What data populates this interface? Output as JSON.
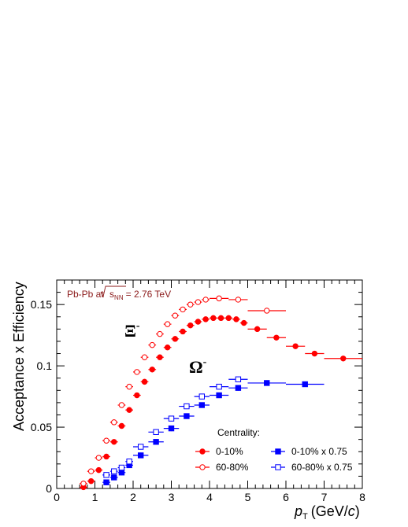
{
  "chart_data": {
    "type": "scatter",
    "system_label": {
      "prefix": "Pb-Pb at",
      "sqrt_s": "s",
      "subscript": "NN",
      "value": "= 2.76 TeV"
    },
    "xlabel": {
      "main": "p",
      "sub": "T",
      "unit_open": "(GeV/",
      "unit_c": "c",
      "unit_close": ")"
    },
    "ylabel": "Acceptance x Efficiency",
    "xlim": [
      0,
      8
    ],
    "ylim": [
      0,
      0.17
    ],
    "xticks": [
      "0",
      "1",
      "2",
      "3",
      "4",
      "5",
      "6",
      "7",
      "8"
    ],
    "yticks": [
      {
        "value": 0,
        "label": "0"
      },
      {
        "value": 0.05,
        "label": "0.05"
      },
      {
        "value": 0.1,
        "label": "0.1"
      },
      {
        "value": 0.15,
        "label": "0.15"
      }
    ],
    "annotations": {
      "xi": {
        "text": "Ξ",
        "sup": "-"
      },
      "omega": {
        "text": "Ω",
        "sup": "-"
      }
    },
    "legend_title": "Centrality:",
    "series": [
      {
        "name": "0-10%",
        "color": "#ff0000",
        "marker": "filled-circle",
        "x": [
          0.7,
          0.9,
          1.1,
          1.3,
          1.5,
          1.7,
          1.9,
          2.1,
          2.3,
          2.5,
          2.7,
          2.9,
          3.1,
          3.3,
          3.5,
          3.7,
          3.9,
          4.1,
          4.3,
          4.5,
          4.7,
          4.9,
          5.25,
          5.75,
          6.25,
          6.75,
          7.5
        ],
        "xerr": [
          0.1,
          0.1,
          0.1,
          0.1,
          0.1,
          0.1,
          0.1,
          0.1,
          0.1,
          0.1,
          0.1,
          0.1,
          0.1,
          0.1,
          0.1,
          0.1,
          0.1,
          0.1,
          0.1,
          0.1,
          0.1,
          0.1,
          0.25,
          0.25,
          0.25,
          0.25,
          0.5
        ],
        "y": [
          0.001,
          0.006,
          0.015,
          0.026,
          0.038,
          0.051,
          0.064,
          0.076,
          0.087,
          0.097,
          0.107,
          0.115,
          0.122,
          0.128,
          0.133,
          0.136,
          0.138,
          0.139,
          0.139,
          0.139,
          0.138,
          0.135,
          0.13,
          0.123,
          0.116,
          0.11,
          0.106
        ]
      },
      {
        "name": "60-80%",
        "color": "#ff0000",
        "marker": "open-circle",
        "x": [
          0.7,
          0.9,
          1.1,
          1.3,
          1.5,
          1.7,
          1.9,
          2.1,
          2.3,
          2.5,
          2.7,
          2.9,
          3.1,
          3.3,
          3.5,
          3.7,
          3.9,
          4.25,
          4.75,
          5.5
        ],
        "xerr": [
          0.1,
          0.1,
          0.1,
          0.1,
          0.1,
          0.1,
          0.1,
          0.1,
          0.1,
          0.1,
          0.1,
          0.1,
          0.1,
          0.1,
          0.1,
          0.1,
          0.1,
          0.25,
          0.25,
          0.5
        ],
        "y": [
          0.004,
          0.014,
          0.025,
          0.039,
          0.054,
          0.068,
          0.083,
          0.095,
          0.107,
          0.117,
          0.126,
          0.134,
          0.141,
          0.146,
          0.15,
          0.152,
          0.154,
          0.155,
          0.154,
          0.145
        ]
      },
      {
        "name": "0-10% x 0.75",
        "color": "#0000ff",
        "marker": "filled-square",
        "x": [
          1.3,
          1.5,
          1.7,
          1.9,
          2.2,
          2.6,
          3.0,
          3.4,
          3.8,
          4.25,
          4.75,
          5.5,
          6.5
        ],
        "xerr": [
          0.1,
          0.1,
          0.1,
          0.1,
          0.2,
          0.2,
          0.2,
          0.2,
          0.2,
          0.25,
          0.25,
          0.5,
          0.5
        ],
        "y": [
          0.005,
          0.009,
          0.013,
          0.019,
          0.027,
          0.038,
          0.049,
          0.059,
          0.068,
          0.076,
          0.082,
          0.086,
          0.085
        ]
      },
      {
        "name": "60-80% x 0.75",
        "color": "#0000ff",
        "marker": "open-square",
        "x": [
          1.3,
          1.5,
          1.7,
          1.9,
          2.2,
          2.6,
          3.0,
          3.4,
          3.8,
          4.25,
          4.75
        ],
        "xerr": [
          0.1,
          0.1,
          0.1,
          0.1,
          0.2,
          0.2,
          0.2,
          0.2,
          0.2,
          0.25,
          0.25
        ],
        "y": [
          0.011,
          0.014,
          0.017,
          0.022,
          0.034,
          0.046,
          0.057,
          0.067,
          0.075,
          0.083,
          0.089
        ]
      }
    ],
    "legend_placement": "lower-right",
    "grid": false
  }
}
